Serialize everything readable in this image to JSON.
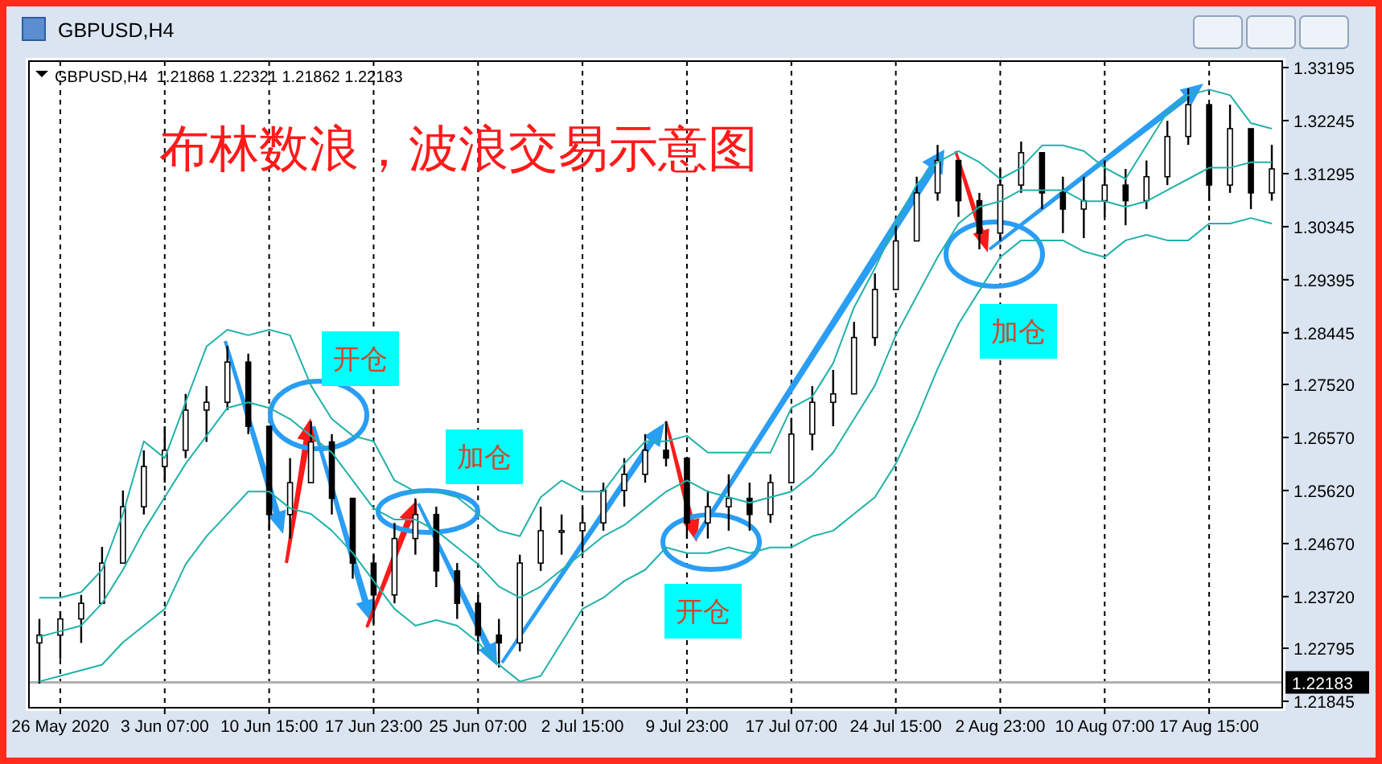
{
  "chart_data": {
    "type": "candlestick",
    "title": "布林数浪，波浪交易示意图",
    "annotations": [
      "GBPUSD,H4  1.21868 1.22321 1.21862 1.22183",
      "GBPUSD,H4",
      "开仓",
      "加仓",
      "开仓",
      "加仓"
    ],
    "categories": [
      null,
      "26 May 2020",
      null,
      null,
      null,
      null,
      "3 Jun 07:00",
      null,
      null,
      null,
      null,
      "10 Jun 15:00",
      null,
      null,
      null,
      null,
      "17 Jun 23:00",
      null,
      null,
      null,
      null,
      "25 Jun 07:00",
      null,
      null,
      null,
      null,
      "2 Jul 15:00",
      null,
      null,
      null,
      null,
      "9 Jul 23:00",
      null,
      null,
      null,
      null,
      "17 Jul 07:00",
      null,
      null,
      null,
      null,
      "24 Jul 15:00",
      null,
      null,
      null,
      null,
      "2 Aug 23:00",
      null,
      null,
      null,
      null,
      "10 Aug 07:00",
      null,
      null,
      null,
      null,
      "17 Aug 15:00",
      null,
      null,
      null
    ],
    "color": "#000000",
    "ohlc": [
      [
        1.2289,
        1.2332,
        1.2216,
        1.2303
      ],
      [
        1.2303,
        1.2346,
        1.226,
        1.2332
      ],
      [
        1.2332,
        1.2375,
        1.2289,
        1.236
      ],
      [
        1.236,
        1.2461,
        1.236,
        1.2432
      ],
      [
        1.2432,
        1.2562,
        1.2432,
        1.2533
      ],
      [
        1.2533,
        1.2634,
        1.2519,
        1.2605
      ],
      [
        1.2605,
        1.2677,
        1.2576,
        1.2634
      ],
      [
        1.2634,
        1.2735,
        1.262,
        1.2706
      ],
      [
        1.2706,
        1.2749,
        1.2649,
        1.272
      ],
      [
        1.272,
        1.2821,
        1.2706,
        1.2792
      ],
      [
        1.2792,
        1.2807,
        1.2663,
        1.2677
      ],
      [
        1.2677,
        1.2677,
        1.249,
        1.2519
      ],
      [
        1.2519,
        1.262,
        1.2476,
        1.2576
      ],
      [
        1.2576,
        1.2686,
        1.2576,
        1.2649
      ],
      [
        1.2649,
        1.2663,
        1.2519,
        1.2548
      ],
      [
        1.2548,
        1.2548,
        1.2404,
        1.2432
      ],
      [
        1.2432,
        1.2447,
        1.2323,
        1.2375
      ],
      [
        1.2375,
        1.2504,
        1.236,
        1.2476
      ],
      [
        1.2476,
        1.2548,
        1.2447,
        1.2519
      ],
      [
        1.2519,
        1.2533,
        1.2389,
        1.2418
      ],
      [
        1.2418,
        1.2432,
        1.2332,
        1.236
      ],
      [
        1.236,
        1.2375,
        1.2274,
        1.2303
      ],
      [
        1.2303,
        1.2332,
        1.2245,
        1.2289
      ],
      [
        1.2289,
        1.2447,
        1.2274,
        1.2432
      ],
      [
        1.2432,
        1.2533,
        1.2418,
        1.249
      ],
      [
        1.249,
        1.2519,
        1.2447,
        1.249
      ],
      [
        1.249,
        1.2533,
        1.2447,
        1.2504
      ],
      [
        1.2504,
        1.2576,
        1.249,
        1.2562
      ],
      [
        1.2562,
        1.262,
        1.2533,
        1.2591
      ],
      [
        1.2591,
        1.2663,
        1.2576,
        1.2634
      ],
      [
        1.2634,
        1.2686,
        1.2605,
        1.262
      ],
      [
        1.262,
        1.262,
        1.2476,
        1.2504
      ],
      [
        1.2504,
        1.2562,
        1.2476,
        1.2533
      ],
      [
        1.2533,
        1.2591,
        1.249,
        1.2548
      ],
      [
        1.2548,
        1.2576,
        1.249,
        1.2519
      ],
      [
        1.2519,
        1.2591,
        1.2504,
        1.2576
      ],
      [
        1.2576,
        1.2692,
        1.2576,
        1.2663
      ],
      [
        1.2663,
        1.2749,
        1.2634,
        1.272
      ],
      [
        1.272,
        1.2778,
        1.2677,
        1.2735
      ],
      [
        1.2735,
        1.2864,
        1.2735,
        1.2836
      ],
      [
        1.2836,
        1.2951,
        1.2821,
        1.2922
      ],
      [
        1.2922,
        1.3037,
        1.2922,
        1.3009
      ],
      [
        1.3009,
        1.3124,
        1.3009,
        1.3095
      ],
      [
        1.3095,
        1.3181,
        1.3081,
        1.3153
      ],
      [
        1.3153,
        1.3153,
        1.3052,
        1.3081
      ],
      [
        1.3081,
        1.3095,
        1.2994,
        1.3023
      ],
      [
        1.3023,
        1.3138,
        1.3009,
        1.3109
      ],
      [
        1.3109,
        1.3187,
        1.3095,
        1.3167
      ],
      [
        1.3167,
        1.3167,
        1.3066,
        1.3095
      ],
      [
        1.3095,
        1.3124,
        1.3023,
        1.3066
      ],
      [
        1.3066,
        1.3124,
        1.3014,
        1.3081
      ],
      [
        1.3081,
        1.3153,
        1.3052,
        1.3109
      ],
      [
        1.3109,
        1.3138,
        1.3037,
        1.3081
      ],
      [
        1.3081,
        1.3153,
        1.3066,
        1.3124
      ],
      [
        1.3124,
        1.3224,
        1.3109,
        1.3196
      ],
      [
        1.3196,
        1.3282,
        1.3181,
        1.3253
      ],
      [
        1.3253,
        1.3253,
        1.3081,
        1.3109
      ],
      [
        1.3109,
        1.3253,
        1.3095,
        1.321
      ],
      [
        1.321,
        1.321,
        1.3066,
        1.3095
      ],
      [
        1.3095,
        1.3181,
        1.3081,
        1.3138
      ]
    ],
    "series": [
      {
        "type": "line",
        "color": "#20b2aa",
        "values": [
          1.237,
          1.237,
          1.238,
          1.242,
          1.252,
          1.265,
          1.262,
          1.272,
          1.282,
          1.285,
          1.284,
          1.285,
          1.284,
          1.275,
          1.269,
          1.266,
          1.265,
          1.258,
          1.256,
          1.256,
          1.255,
          1.252,
          1.249,
          1.248,
          1.255,
          1.258,
          1.256,
          1.256,
          1.261,
          1.265,
          1.265,
          1.266,
          1.263,
          1.263,
          1.263,
          1.263,
          1.271,
          1.273,
          1.279,
          1.289,
          1.296,
          1.304,
          1.311,
          1.315,
          1.317,
          1.315,
          1.312,
          1.314,
          1.318,
          1.318,
          1.317,
          1.314,
          1.312,
          1.318,
          1.324,
          1.327,
          1.328,
          1.327,
          1.322,
          1.321
        ]
      },
      {
        "type": "line",
        "color": "#20b2aa",
        "values": [
          1.23,
          1.231,
          1.232,
          1.236,
          1.242,
          1.249,
          1.255,
          1.261,
          1.266,
          1.271,
          1.272,
          1.271,
          1.269,
          1.266,
          1.263,
          1.258,
          1.253,
          1.251,
          1.251,
          1.249,
          1.246,
          1.243,
          1.239,
          1.237,
          1.239,
          1.242,
          1.245,
          1.248,
          1.25,
          1.253,
          1.256,
          1.258,
          1.256,
          1.255,
          1.254,
          1.255,
          1.256,
          1.259,
          1.263,
          1.269,
          1.275,
          1.284,
          1.291,
          1.298,
          1.304,
          1.307,
          1.308,
          1.31,
          1.31,
          1.31,
          1.308,
          1.308,
          1.307,
          1.308,
          1.31,
          1.312,
          1.314,
          1.314,
          1.315,
          1.315
        ]
      },
      {
        "type": "line",
        "color": "#20b2aa",
        "values": [
          1.222,
          1.223,
          1.224,
          1.225,
          1.229,
          1.232,
          1.235,
          1.243,
          1.248,
          1.252,
          1.256,
          1.256,
          1.253,
          1.252,
          1.249,
          1.245,
          1.24,
          1.235,
          1.232,
          1.233,
          1.232,
          1.229,
          1.225,
          1.222,
          1.223,
          1.229,
          1.235,
          1.237,
          1.24,
          1.242,
          1.246,
          1.245,
          1.245,
          1.246,
          1.245,
          1.246,
          1.246,
          1.248,
          1.249,
          1.252,
          1.255,
          1.261,
          1.269,
          1.278,
          1.286,
          1.292,
          1.298,
          1.301,
          1.301,
          1.301,
          1.299,
          1.298,
          1.301,
          1.302,
          1.301,
          1.301,
          1.304,
          1.304,
          1.305,
          1.304
        ]
      }
    ],
    "ylim": [
      1.2173,
      1.3331
    ],
    "yticks": [
      1.33195,
      1.32245,
      1.31295,
      1.30345,
      1.29395,
      1.28445,
      {
        "value": 1.2752,
        "label": "1.27520"
      },
      {
        "value": 1.2657,
        "label": "1.26570"
      },
      {
        "value": 1.2562,
        "label": "1.25620"
      },
      {
        "value": 1.2467,
        "label": "1.24670"
      },
      {
        "value": 1.2372,
        "label": "1.23720"
      },
      1.22795,
      1.21845
    ],
    "ref_lines": [
      {
        "axis": "y",
        "value": 1.22183,
        "label": "1.22183",
        "color": "#b0b0b0"
      }
    ],
    "grid": "x"
  }
}
